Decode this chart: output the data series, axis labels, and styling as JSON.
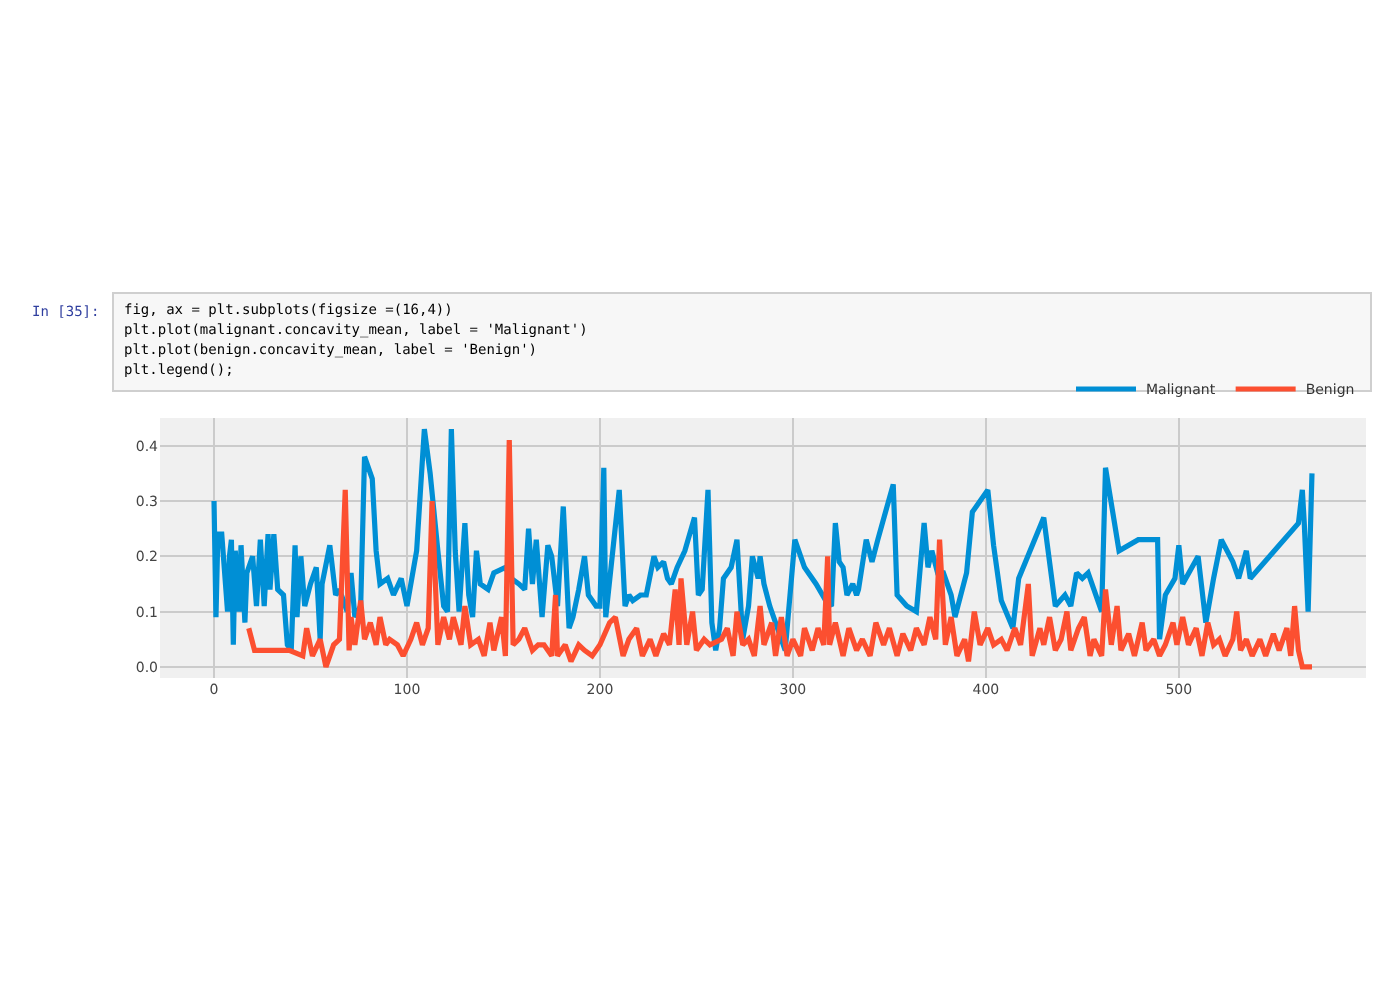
{
  "chart_data": {
    "type": "line",
    "annotations": [
      "In [35]:",
      "fig, ax = plt.subplots(figsize =(16,4))",
      "plt.plot(malignant.concavity_mean, label = 'Malignant')",
      "plt.plot(benign.concavity_mean, label = 'Benign')",
      "plt.legend();"
    ],
    "xlim": [
      -28,
      597
    ],
    "xticks": [
      0,
      100,
      200,
      300,
      400,
      500
    ],
    "ylim": [
      -0.02,
      0.45
    ],
    "yticks": [
      {
        "value": 0,
        "label": "0.0"
      },
      {
        "value": 0.1,
        "label": "0.1"
      },
      {
        "value": 0.2,
        "label": "0.2"
      },
      {
        "value": 0.3,
        "label": "0.3"
      },
      {
        "value": 0.4,
        "label": "0.4"
      }
    ],
    "grid": true,
    "legend": "top right",
    "line_style": "solid",
    "marker": "none",
    "series": [
      {
        "name": "Malignant",
        "color": "#008fd5",
        "x": [
          0,
          1,
          2,
          4,
          7,
          8,
          9,
          10,
          11,
          13,
          14,
          16,
          17,
          20,
          22,
          24,
          26,
          28,
          29,
          31,
          33,
          36,
          38,
          40,
          42,
          43,
          45,
          47,
          50,
          53,
          55,
          56,
          60,
          63,
          65,
          69,
          71,
          73,
          76,
          78,
          82,
          84,
          86,
          90,
          93,
          97,
          100,
          105,
          109,
          112,
          116,
          119,
          121,
          123,
          125,
          127,
          130,
          132,
          134,
          136,
          138,
          142,
          145,
          151,
          154,
          158,
          161,
          163,
          165,
          167,
          170,
          173,
          175,
          178,
          181,
          184,
          186,
          189,
          192,
          194,
          198,
          200,
          202,
          203,
          210,
          213,
          215,
          217,
          221,
          224,
          228,
          230,
          233,
          235,
          237,
          240,
          244,
          249,
          251,
          253,
          256,
          258,
          260,
          262,
          264,
          268,
          271,
          274,
          277,
          279,
          282,
          283,
          285,
          288,
          291,
          296,
          301,
          306,
          312,
          317,
          320,
          322,
          324,
          326,
          328,
          331,
          333,
          334,
          338,
          341,
          344,
          348,
          352,
          354,
          359,
          364,
          368,
          370,
          372,
          375,
          378,
          382,
          384,
          390,
          393,
          401,
          404,
          408,
          414,
          417,
          430,
          436,
          441,
          444,
          447,
          450,
          453,
          460,
          462,
          469,
          479,
          489,
          490,
          493,
          498,
          500,
          502,
          510,
          514,
          518,
          522,
          528,
          531,
          535,
          537,
          562,
          564,
          565,
          567,
          569
        ],
        "values": [
          0.3,
          0.09,
          0.24,
          0.24,
          0.1,
          0.2,
          0.23,
          0.04,
          0.21,
          0.1,
          0.22,
          0.08,
          0.17,
          0.2,
          0.11,
          0.23,
          0.11,
          0.24,
          0.14,
          0.24,
          0.14,
          0.13,
          0.04,
          0.03,
          0.22,
          0.09,
          0.2,
          0.11,
          0.15,
          0.18,
          0.05,
          0.15,
          0.22,
          0.13,
          0.14,
          0.1,
          0.17,
          0.09,
          0.11,
          0.38,
          0.34,
          0.21,
          0.15,
          0.16,
          0.13,
          0.16,
          0.11,
          0.21,
          0.43,
          0.35,
          0.21,
          0.11,
          0.1,
          0.43,
          0.21,
          0.1,
          0.26,
          0.13,
          0.09,
          0.21,
          0.15,
          0.14,
          0.17,
          0.18,
          0.16,
          0.15,
          0.14,
          0.25,
          0.15,
          0.23,
          0.09,
          0.22,
          0.2,
          0.11,
          0.29,
          0.07,
          0.09,
          0.14,
          0.2,
          0.13,
          0.11,
          0.11,
          0.36,
          0.09,
          0.32,
          0.11,
          0.13,
          0.12,
          0.13,
          0.13,
          0.2,
          0.18,
          0.19,
          0.16,
          0.15,
          0.18,
          0.21,
          0.27,
          0.13,
          0.14,
          0.32,
          0.08,
          0.03,
          0.07,
          0.16,
          0.18,
          0.23,
          0.05,
          0.11,
          0.2,
          0.16,
          0.2,
          0.15,
          0.11,
          0.08,
          0.03,
          0.23,
          0.18,
          0.15,
          0.12,
          0.11,
          0.26,
          0.19,
          0.18,
          0.13,
          0.15,
          0.13,
          0.14,
          0.23,
          0.19,
          0.23,
          0.28,
          0.33,
          0.13,
          0.11,
          0.1,
          0.26,
          0.18,
          0.21,
          0.17,
          0.17,
          0.13,
          0.09,
          0.17,
          0.28,
          0.32,
          0.22,
          0.12,
          0.07,
          0.16,
          0.27,
          0.11,
          0.13,
          0.11,
          0.17,
          0.16,
          0.17,
          0.1,
          0.36,
          0.21,
          0.23,
          0.23,
          0.05,
          0.13,
          0.16,
          0.22,
          0.15,
          0.2,
          0.08,
          0.16,
          0.23,
          0.19,
          0.16,
          0.21,
          0.16,
          0.26,
          0.32,
          0.26,
          0.1,
          0.35
        ]
      },
      {
        "name": "Benign",
        "color": "#fc4f30",
        "x": [
          18,
          21,
          39,
          46,
          48,
          51,
          55,
          58,
          62,
          65,
          68,
          70,
          71,
          73,
          76,
          78,
          81,
          84,
          86,
          89,
          91,
          95,
          98,
          102,
          105,
          108,
          111,
          113,
          116,
          119,
          122,
          124,
          128,
          130,
          133,
          137,
          140,
          143,
          145,
          149,
          151,
          153,
          155,
          158,
          161,
          165,
          168,
          171,
          175,
          177,
          178,
          182,
          185,
          189,
          192,
          196,
          200,
          205,
          208,
          212,
          215,
          219,
          222,
          226,
          229,
          233,
          236,
          239,
          241,
          242,
          245,
          248,
          250,
          254,
          257,
          263,
          266,
          269,
          271,
          274,
          277,
          280,
          283,
          285,
          289,
          291,
          294,
          297,
          300,
          304,
          306,
          310,
          313,
          316,
          318,
          319,
          322,
          326,
          329,
          333,
          336,
          340,
          343,
          347,
          350,
          354,
          357,
          361,
          364,
          368,
          371,
          374,
          376,
          379,
          382,
          385,
          389,
          391,
          394,
          397,
          401,
          404,
          408,
          411,
          415,
          418,
          422,
          424,
          428,
          430,
          433,
          436,
          439,
          442,
          444,
          448,
          451,
          454,
          456,
          460,
          462,
          465,
          468,
          470,
          474,
          477,
          481,
          483,
          487,
          490,
          493,
          497,
          499,
          502,
          505,
          509,
          512,
          515,
          518,
          521,
          524,
          528,
          530,
          532,
          535,
          538,
          542,
          545,
          549,
          552,
          556,
          558,
          560,
          562,
          564,
          569
        ],
        "values": [
          0.07,
          0.03,
          0.03,
          0.02,
          0.07,
          0.02,
          0.05,
          0.0,
          0.04,
          0.05,
          0.32,
          0.03,
          0.09,
          0.04,
          0.12,
          0.05,
          0.08,
          0.04,
          0.09,
          0.04,
          0.05,
          0.04,
          0.02,
          0.05,
          0.08,
          0.04,
          0.07,
          0.3,
          0.04,
          0.09,
          0.05,
          0.09,
          0.04,
          0.11,
          0.04,
          0.05,
          0.02,
          0.08,
          0.03,
          0.09,
          0.02,
          0.41,
          0.04,
          0.05,
          0.07,
          0.03,
          0.04,
          0.04,
          0.02,
          0.13,
          0.02,
          0.04,
          0.01,
          0.04,
          0.03,
          0.02,
          0.04,
          0.08,
          0.09,
          0.02,
          0.05,
          0.07,
          0.02,
          0.05,
          0.02,
          0.06,
          0.04,
          0.14,
          0.04,
          0.16,
          0.04,
          0.1,
          0.03,
          0.05,
          0.04,
          0.05,
          0.07,
          0.02,
          0.1,
          0.04,
          0.05,
          0.02,
          0.11,
          0.04,
          0.08,
          0.02,
          0.09,
          0.02,
          0.05,
          0.02,
          0.07,
          0.03,
          0.07,
          0.04,
          0.2,
          0.04,
          0.08,
          0.02,
          0.07,
          0.03,
          0.05,
          0.02,
          0.08,
          0.04,
          0.07,
          0.02,
          0.06,
          0.03,
          0.07,
          0.04,
          0.09,
          0.05,
          0.23,
          0.04,
          0.09,
          0.02,
          0.05,
          0.01,
          0.1,
          0.04,
          0.07,
          0.04,
          0.05,
          0.03,
          0.07,
          0.04,
          0.15,
          0.02,
          0.07,
          0.04,
          0.09,
          0.03,
          0.05,
          0.1,
          0.03,
          0.07,
          0.09,
          0.02,
          0.05,
          0.02,
          0.14,
          0.04,
          0.11,
          0.03,
          0.06,
          0.02,
          0.08,
          0.03,
          0.05,
          0.02,
          0.04,
          0.08,
          0.04,
          0.09,
          0.04,
          0.07,
          0.02,
          0.08,
          0.04,
          0.05,
          0.02,
          0.05,
          0.1,
          0.03,
          0.05,
          0.02,
          0.05,
          0.02,
          0.06,
          0.03,
          0.07,
          0.02,
          0.11,
          0.03,
          0.0,
          0.0
        ]
      }
    ]
  }
}
